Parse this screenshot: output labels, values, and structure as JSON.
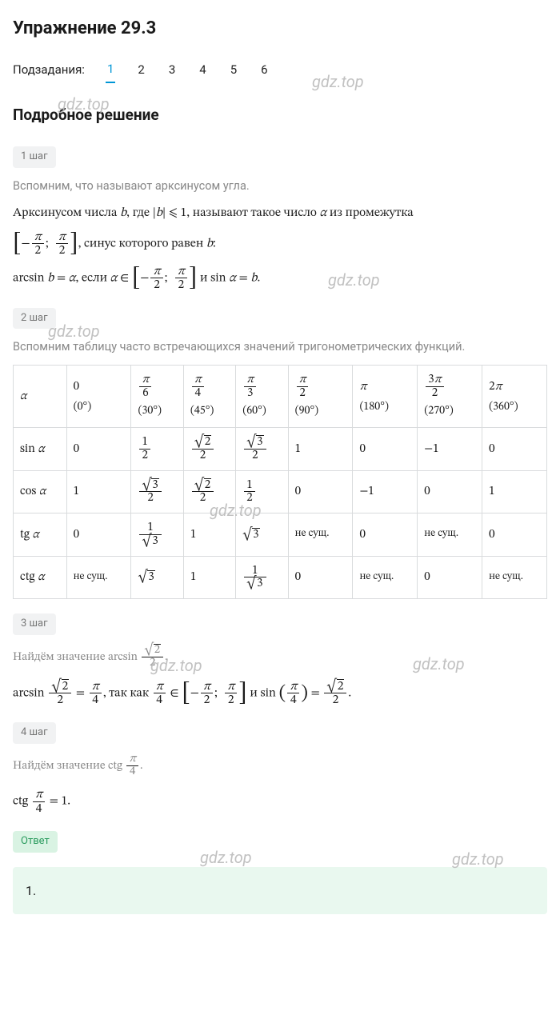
{
  "title": "Упражнение 29.3",
  "subtasks_label": "Подзадания:",
  "subtasks": [
    "1",
    "2",
    "3",
    "4",
    "5",
    "6"
  ],
  "active_subtask_index": 0,
  "solution_title": "Подробное решение",
  "watermark_text": "gdz.top",
  "steps": [
    {
      "badge": "1 шаг",
      "intro": "Вспомним, что называют арксинусом угла.",
      "body_lines": [
        "Арксинусом числа b, где |b| ⩽ 1, называют такое число α из промежутка",
        "[−π/2; π/2], синус которого равен b:",
        "arcsin b = α, если α ∈ [−π/2; π/2] и sin α = b."
      ]
    },
    {
      "badge": "2 шаг",
      "intro": "Вспомним таблицу часто встречающихся значений тригонометрических функций."
    },
    {
      "badge": "3 шаг",
      "intro": "Найдём значение arcsin (√2)/2.",
      "body_lines": [
        "arcsin (√2)/2 = π/4, так как π/4 ∈ [−π/2; π/2] и sin(π/4) = (√2)/2."
      ]
    },
    {
      "badge": "4 шаг",
      "intro": "Найдём значение ctg π/4.",
      "body_lines": [
        "ctg π/4 = 1."
      ]
    }
  ],
  "trig_table": {
    "columns": [
      {
        "rad": "0",
        "deg": "(0°)"
      },
      {
        "rad": "π/6",
        "deg": "(30°)"
      },
      {
        "rad": "π/4",
        "deg": "(45°)"
      },
      {
        "rad": "π/3",
        "deg": "(60°)"
      },
      {
        "rad": "π/2",
        "deg": "(90°)"
      },
      {
        "rad": "π",
        "deg": "(180°)"
      },
      {
        "rad": "3π/2",
        "deg": "(270°)"
      },
      {
        "rad": "2π",
        "deg": "(360°)"
      }
    ],
    "rows": [
      {
        "label": "α"
      },
      {
        "label": "sin α",
        "values": [
          "0",
          "1/2",
          "√2/2",
          "√3/2",
          "1",
          "0",
          "−1",
          "0"
        ]
      },
      {
        "label": "cos α",
        "values": [
          "1",
          "√3/2",
          "√2/2",
          "1/2",
          "0",
          "−1",
          "0",
          "1"
        ]
      },
      {
        "label": "tg α",
        "values": [
          "0",
          "1/√3",
          "1",
          "√3",
          "не сущ.",
          "0",
          "не сущ.",
          "0"
        ]
      },
      {
        "label": "ctg α",
        "values": [
          "не сущ.",
          "√3",
          "1",
          "1/√3",
          "0",
          "не сущ.",
          "0",
          "не сущ."
        ]
      }
    ]
  },
  "answer": {
    "label": "Ответ",
    "value": "1."
  },
  "colors": {
    "accent": "#0096d6",
    "muted_text": "#888888",
    "badge_bg": "#f1f2f3",
    "badge_text": "#777777",
    "answer_badge_bg": "#d9f3e3",
    "answer_badge_text": "#2b9b5e",
    "answer_box_bg": "#e9f8ef",
    "table_border": "#d9dbdd",
    "text": "#1a1a1a"
  }
}
